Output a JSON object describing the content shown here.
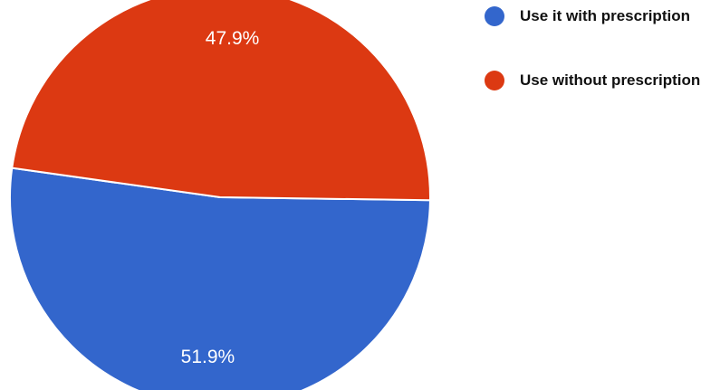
{
  "chart_data": {
    "type": "pie",
    "categories": [
      "Use it with prescription",
      "Use without prescription"
    ],
    "values": [
      51.9,
      47.9
    ],
    "data_labels": [
      "51.9%",
      "47.9%"
    ],
    "colors": [
      "#3366cc",
      "#dc3912"
    ],
    "title": "",
    "legend_position": "right"
  }
}
